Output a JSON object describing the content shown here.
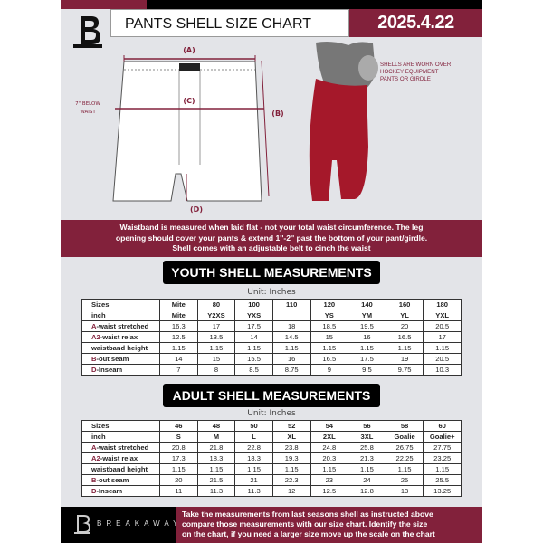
{
  "header": {
    "title": "PANTS SHELL SIZE CHART",
    "date": "2025.4.22",
    "logo_letter": "B"
  },
  "diagram": {
    "label_a": "(A)",
    "label_b": "(B)",
    "label_c": "(C)",
    "label_d": "(D)",
    "waist_note_1": "7\" BELOW",
    "waist_note_2": "WAIST",
    "photo_note": "SHELLS ARE WORN OVER HOCKEY EQUIPMENT PANTS OR GIRDLE"
  },
  "colors": {
    "accent": "#82213b",
    "dark": "#000000",
    "background": "#e3e4e8"
  },
  "banner": {
    "line1": "Waistband is measured when laid flat - not your total waist circumference. The leg",
    "line2": "opening should cover your pants & extend 1''-2'' past the bottom of your pant/girdle.",
    "line3": "Shell comes with an adjustable belt to cinch the waist"
  },
  "youth": {
    "title": "YOUTH SHELL MEASUREMENTS",
    "unit": "Unit: Inches",
    "rows": [
      {
        "p": "",
        "l": "Sizes",
        "v": [
          "Mite",
          "80",
          "100",
          "110",
          "120",
          "140",
          "160",
          "180"
        ]
      },
      {
        "p": "",
        "l": "inch",
        "v": [
          "Mite",
          "Y2XS",
          "YXS",
          "",
          "YS",
          "YM",
          "YL",
          "YXL"
        ]
      },
      {
        "p": "A",
        "l": "-waist stretched",
        "v": [
          "16.3",
          "17",
          "17.5",
          "18",
          "18.5",
          "19.5",
          "20",
          "20.5"
        ]
      },
      {
        "p": "A2",
        "l": "-waist relax",
        "v": [
          "12.5",
          "13.5",
          "14",
          "14.5",
          "15",
          "16",
          "16.5",
          "17"
        ]
      },
      {
        "p": "",
        "l": "waistband height",
        "v": [
          "1.15",
          "1.15",
          "1.15",
          "1.15",
          "1.15",
          "1.15",
          "1.15",
          "1.15"
        ]
      },
      {
        "p": "B",
        "l": "-out seam",
        "v": [
          "14",
          "15",
          "15.5",
          "16",
          "16.5",
          "17.5",
          "19",
          "20.5"
        ]
      },
      {
        "p": "D",
        "l": "-Inseam",
        "v": [
          "7",
          "8",
          "8.5",
          "8.75",
          "9",
          "9.5",
          "9.75",
          "10.3"
        ]
      }
    ]
  },
  "adult": {
    "title": "ADULT SHELL MEASUREMENTS",
    "unit": "Unit: Inches",
    "rows": [
      {
        "p": "",
        "l": "Sizes",
        "v": [
          "46",
          "48",
          "50",
          "52",
          "54",
          "56",
          "58",
          "60"
        ]
      },
      {
        "p": "",
        "l": "inch",
        "v": [
          "S",
          "M",
          "L",
          "XL",
          "2XL",
          "3XL",
          "Goalie",
          "Goalie+"
        ]
      },
      {
        "p": "A",
        "l": "-waist stretched",
        "v": [
          "20.8",
          "21.8",
          "22.8",
          "23.8",
          "24.8",
          "25.8",
          "26.75",
          "27.75"
        ]
      },
      {
        "p": "A2",
        "l": "-waist relax",
        "v": [
          "17.3",
          "18.3",
          "18.3",
          "19.3",
          "20.3",
          "21.3",
          "22.25",
          "23.25"
        ]
      },
      {
        "p": "",
        "l": "waistband height",
        "v": [
          "1.15",
          "1.15",
          "1.15",
          "1.15",
          "1.15",
          "1.15",
          "1.15",
          "1.15"
        ]
      },
      {
        "p": "B",
        "l": "-out seam",
        "v": [
          "20",
          "21.5",
          "21",
          "22.3",
          "23",
          "24",
          "25",
          "25.5"
        ]
      },
      {
        "p": "D",
        "l": "-Inseam",
        "v": [
          "11",
          "11.3",
          "11.3",
          "12",
          "12.5",
          "12.8",
          "13",
          "13.25"
        ]
      }
    ]
  },
  "footer": {
    "brand": "BREAKAWAY",
    "line1": "Take the measurements from last seasons shell as instructed above",
    "line2": "compare those measurements  with our size chart. Identify the size",
    "line3": "on the chart, if you need a larger size move up the scale on the chart"
  }
}
